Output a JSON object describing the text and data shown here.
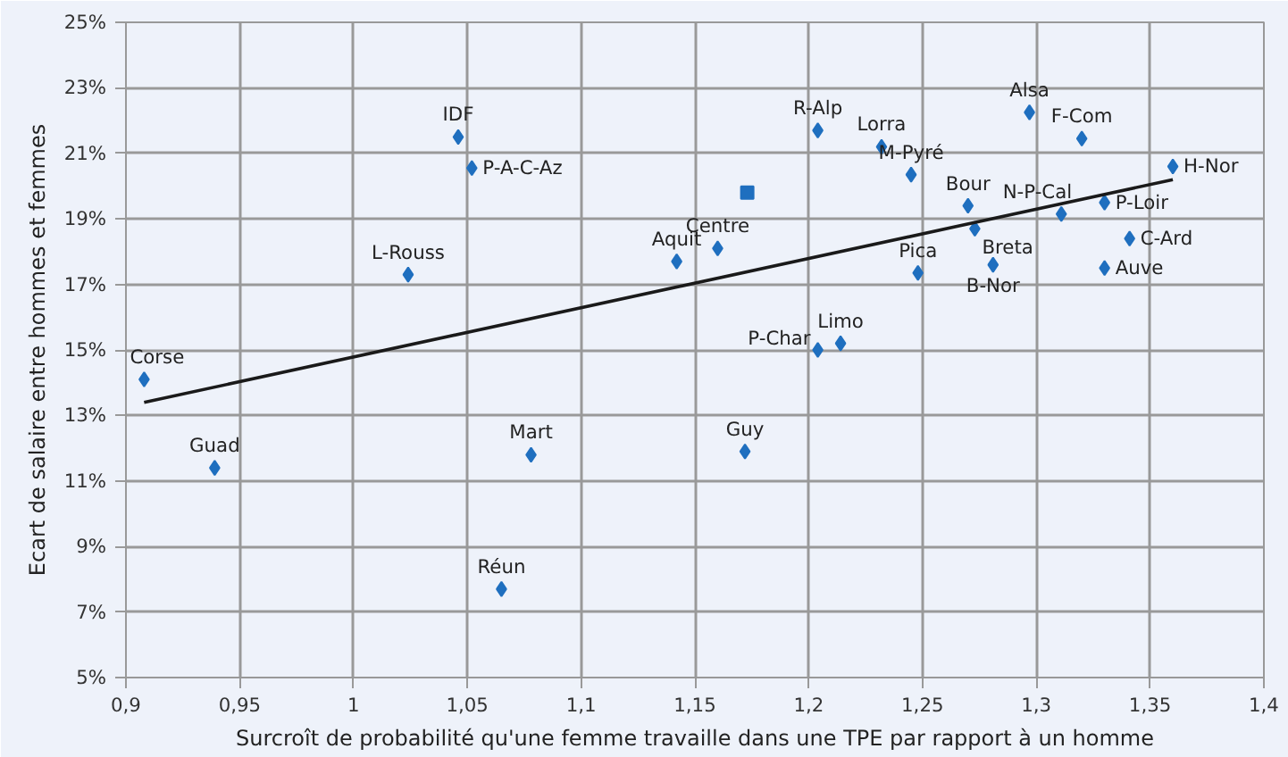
{
  "chart_data": {
    "type": "scatter",
    "xlabel": "Surcroît de probabilité qu'une femme travaille dans une TPE par rapport à un homme",
    "ylabel": "Ecart de salaire entre hommes et femmes",
    "xlim": [
      0.9,
      1.4
    ],
    "ylim": [
      5,
      25
    ],
    "xticks": [
      {
        "value": 0.9,
        "label": "0,9"
      },
      {
        "value": 0.95,
        "label": "0,95"
      },
      1,
      {
        "value": 1.05,
        "label": "1,05"
      },
      {
        "value": 1.1,
        "label": "1,1"
      },
      {
        "value": 1.15,
        "label": "1,15"
      },
      {
        "value": 1.2,
        "label": "1,2"
      },
      {
        "value": 1.25,
        "label": "1,25"
      },
      {
        "value": 1.3,
        "label": "1,3"
      },
      {
        "value": 1.35,
        "label": "1,35"
      },
      {
        "value": 1.4,
        "label": "1,4"
      }
    ],
    "yticks": [
      {
        "value": 5,
        "label": "5%"
      },
      {
        "value": 7,
        "label": "7%"
      },
      {
        "value": 9,
        "label": "9%"
      },
      {
        "value": 11,
        "label": "11%"
      },
      {
        "value": 13,
        "label": "13%"
      },
      {
        "value": 15,
        "label": "15%"
      },
      {
        "value": 17,
        "label": "17%"
      },
      {
        "value": 19,
        "label": "19%"
      },
      {
        "value": 21,
        "label": "21%"
      },
      {
        "value": 23,
        "label": "23%"
      },
      {
        "value": 25,
        "label": "25%"
      }
    ],
    "grid": true,
    "marker": "diamond",
    "series": [
      {
        "color": "#1f6fbf",
        "x": [
          0.908,
          0.939,
          1.046,
          1.052,
          1.024,
          1.078,
          1.065,
          1.172,
          1.142,
          1.16,
          1.204,
          1.232,
          1.245,
          1.297,
          1.32,
          1.36,
          1.27,
          1.273,
          1.311,
          1.33,
          1.341,
          1.33,
          1.281,
          1.248,
          1.204,
          1.214
        ],
        "values": [
          14.1,
          11.4,
          21.5,
          20.55,
          17.3,
          11.8,
          7.7,
          11.9,
          17.7,
          18.1,
          21.7,
          21.2,
          20.35,
          22.25,
          21.45,
          20.6,
          19.4,
          18.7,
          19.15,
          19.5,
          18.4,
          17.5,
          17.6,
          17.35,
          15.0,
          15.2
        ]
      },
      {
        "color": "#1f6fbf",
        "marker": "square",
        "x": [
          1.173
        ],
        "values": [
          19.8
        ]
      },
      {
        "type": "line",
        "color": "#1a1a1a",
        "marker": "none",
        "x": [
          0.908,
          1.36
        ],
        "values": [
          13.4,
          20.2
        ]
      }
    ],
    "annotations": [
      {
        "text": "Corse",
        "x": 0.908,
        "y": 14.1
      },
      {
        "text": "Guad",
        "x": 0.939,
        "y": 11.4
      },
      {
        "text": "IDF",
        "x": 1.046,
        "y": 21.5
      },
      {
        "text": "P-A-C-Az",
        "x": 1.052,
        "y": 20.55
      },
      {
        "text": "L-Rouss",
        "x": 1.024,
        "y": 17.3
      },
      {
        "text": "Mart",
        "x": 1.078,
        "y": 11.8
      },
      {
        "text": "Réun",
        "x": 1.065,
        "y": 7.7
      },
      {
        "text": "Guy",
        "x": 1.172,
        "y": 11.9
      },
      {
        "text": "Aquit",
        "x": 1.142,
        "y": 17.7
      },
      {
        "text": "Centre",
        "x": 1.16,
        "y": 18.1
      },
      {
        "text": "R-Alp",
        "x": 1.204,
        "y": 21.7
      },
      {
        "text": "Lorra",
        "x": 1.232,
        "y": 21.2
      },
      {
        "text": "M-Pyré",
        "x": 1.245,
        "y": 20.35
      },
      {
        "text": "Alsa",
        "x": 1.297,
        "y": 22.25
      },
      {
        "text": "F-Com",
        "x": 1.32,
        "y": 21.45
      },
      {
        "text": "H-Nor",
        "x": 1.36,
        "y": 20.6
      },
      {
        "text": "Bour",
        "x": 1.27,
        "y": 19.4
      },
      {
        "text": "Breta",
        "x": 1.273,
        "y": 18.7
      },
      {
        "text": "N-P-Cal",
        "x": 1.311,
        "y": 19.15
      },
      {
        "text": "P-Loir",
        "x": 1.33,
        "y": 19.5
      },
      {
        "text": "C-Ard",
        "x": 1.341,
        "y": 18.4
      },
      {
        "text": "Auve",
        "x": 1.33,
        "y": 17.5
      },
      {
        "text": "B-Nor",
        "x": 1.281,
        "y": 17.6
      },
      {
        "text": "Pica",
        "x": 1.248,
        "y": 17.35
      },
      {
        "text": "P-Char",
        "x": 1.204,
        "y": 15.0
      },
      {
        "text": "Limo",
        "x": 1.214,
        "y": 15.2
      }
    ]
  }
}
